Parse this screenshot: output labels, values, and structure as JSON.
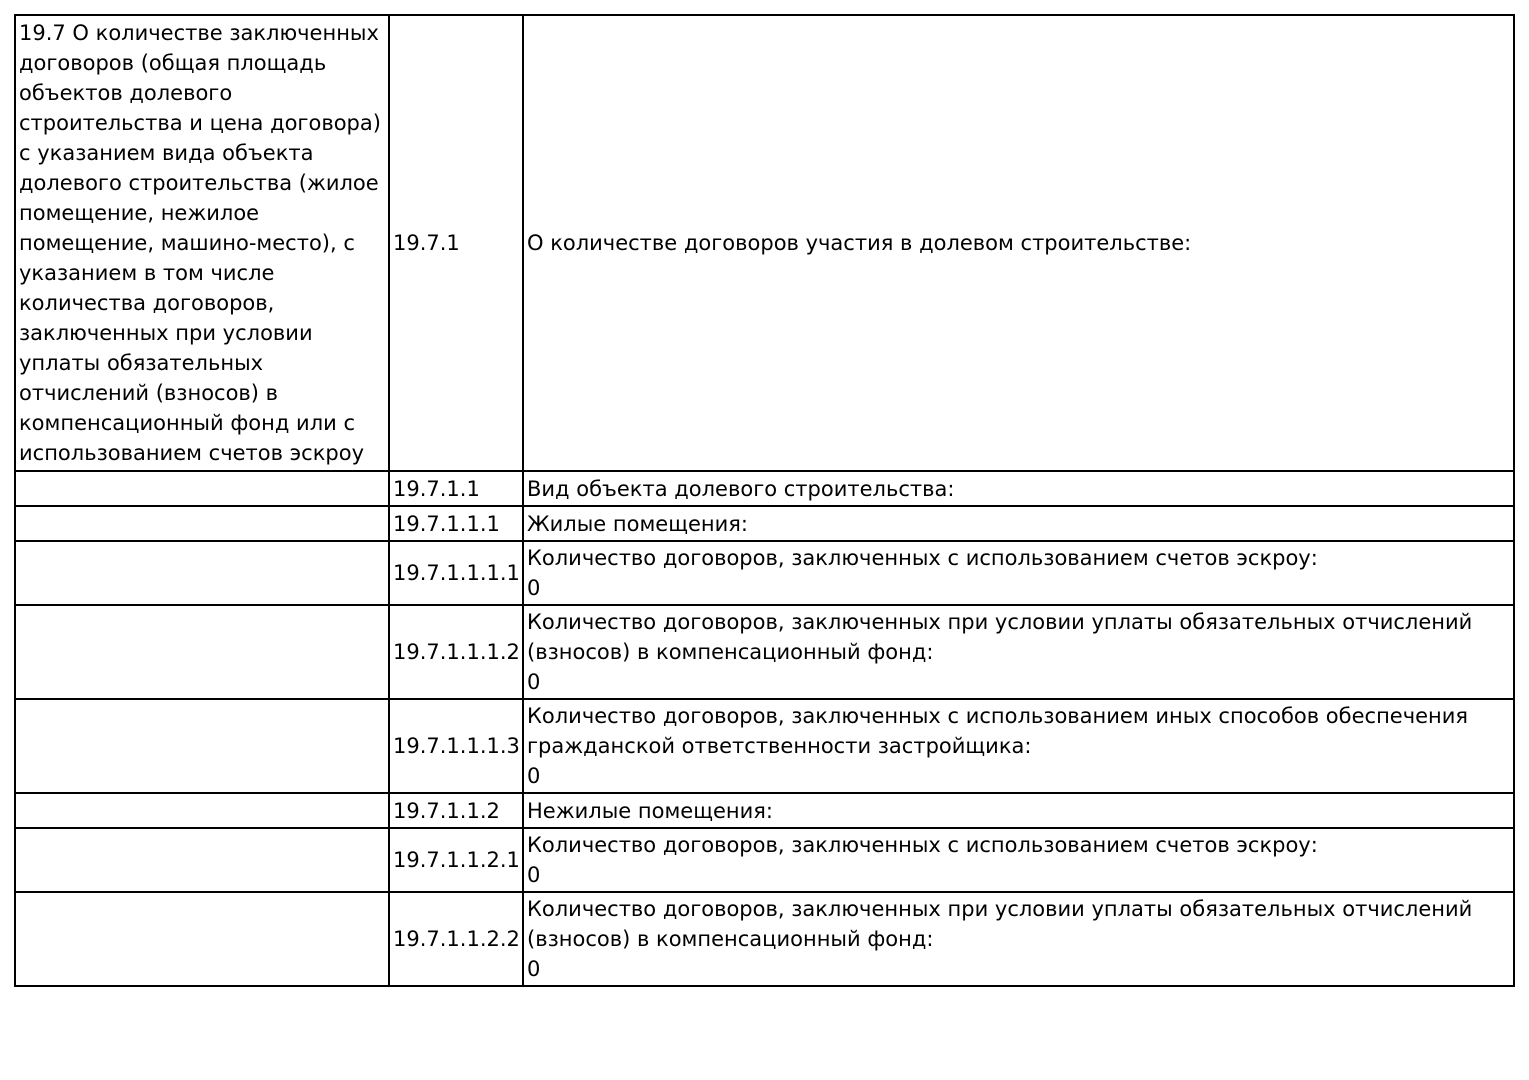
{
  "page": {
    "background_color": "#ffffff",
    "border_color": "#000000",
    "text_color": "#000000"
  },
  "table": {
    "section_label": "19.7 О количестве заключенных договоров (общая площадь объектов долевого строительства и цена договора) с указанием вида объекта долевого строительства (жилое помещение, нежилое помещение, машино-место), с указанием в том числе количества договоров, заключенных при условии уплаты обязательных отчислений (взносов) в компенсационный фонд или с использованием счетов эскроу",
    "rows": [
      {
        "num": "19.7.1",
        "label": "О количестве договоров участия в долевом строительстве:",
        "value": ""
      },
      {
        "num": "19.7.1.1",
        "label": "Вид объекта долевого строительства:",
        "value": ""
      },
      {
        "num": "19.7.1.1.1",
        "label": "Жилые помещения:",
        "value": ""
      },
      {
        "num": "19.7.1.1.1.1",
        "label": "Количество договоров, заключенных с использованием счетов эскроу:",
        "value": "0"
      },
      {
        "num": "19.7.1.1.1.2",
        "label": "Количество договоров, заключенных при условии уплаты обязательных отчислений (взносов) в компенсационный фонд:",
        "value": "0"
      },
      {
        "num": "19.7.1.1.1.3",
        "label": "Количество договоров, заключенных с использованием иных способов обеспечения гражданской ответственности застройщика:",
        "value": "0"
      },
      {
        "num": "19.7.1.1.2",
        "label": "Нежилые помещения:",
        "value": ""
      },
      {
        "num": "19.7.1.1.2.1",
        "label": "Количество договоров, заключенных с использованием счетов эскроу:",
        "value": "0"
      },
      {
        "num": "19.7.1.1.2.2",
        "label": "Количество договоров, заключенных при условии уплаты обязательных отчислений (взносов) в компенсационный фонд:",
        "value": "0"
      }
    ]
  }
}
